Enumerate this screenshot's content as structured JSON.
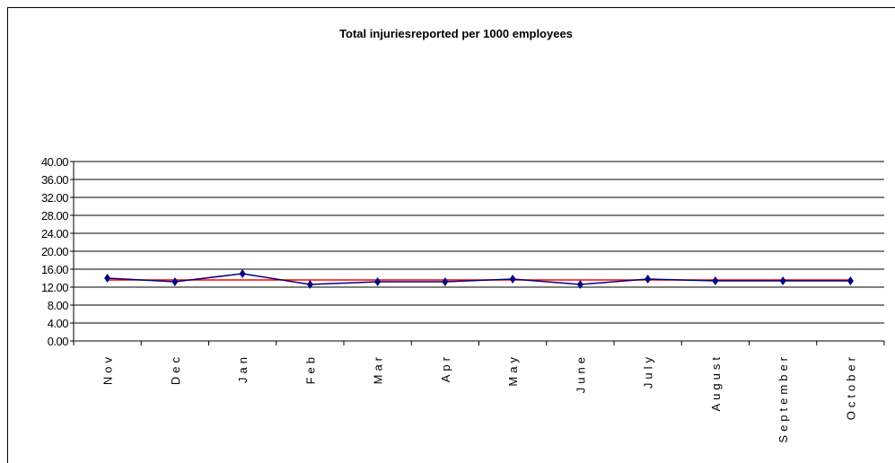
{
  "chart_data": {
    "type": "line",
    "title": "Total injuriesreported  per 1000 employees",
    "categories": [
      "Nov",
      "Dec",
      "Jan",
      "Feb",
      "Mar",
      "Apr",
      "May",
      "June",
      "July",
      "August",
      "September",
      "October"
    ],
    "series": [
      {
        "color": "#000080",
        "marker": "diamond",
        "values": [
          14.0,
          13.2,
          15.0,
          12.6,
          13.2,
          13.2,
          13.8,
          12.6,
          13.8,
          13.4,
          13.4,
          13.4
        ]
      },
      {
        "color": "#ff0000",
        "values": [
          13.6,
          13.6,
          13.6,
          13.6,
          13.6,
          13.6,
          13.6,
          13.6,
          13.6,
          13.6,
          13.6,
          13.6
        ]
      }
    ],
    "ylim": [
      0,
      40
    ],
    "yticks": [
      {
        "value": 0,
        "label": "0.00"
      },
      {
        "value": 4,
        "label": "4.00"
      },
      {
        "value": 8,
        "label": "8.00"
      },
      {
        "value": 12,
        "label": "12.00"
      },
      {
        "value": 16,
        "label": "16.00"
      },
      {
        "value": 20,
        "label": "20.00"
      },
      {
        "value": 24,
        "label": "24.00"
      },
      {
        "value": 28,
        "label": "28.00"
      },
      {
        "value": 32,
        "label": "32.00"
      },
      {
        "value": 36,
        "label": "36.00"
      },
      {
        "value": 40,
        "label": "40.00"
      }
    ],
    "grid": true
  }
}
